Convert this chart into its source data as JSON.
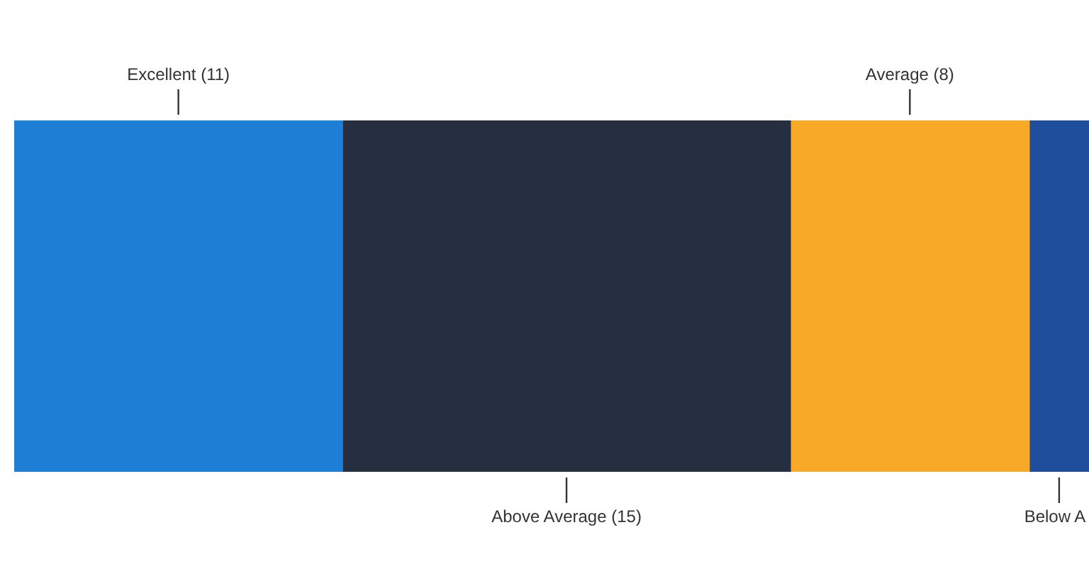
{
  "chart_data": {
    "type": "bar",
    "orientation": "horizontal",
    "stacked": true,
    "categories": [
      null
    ],
    "xlim": [
      0,
      36
    ],
    "tick_labels": false,
    "series": [
      {
        "color": "#1f7fd6",
        "values": [
          11
        ],
        "value_labels": [
          "Excellent (11)"
        ]
      },
      {
        "color": "#252f40",
        "values": [
          15
        ],
        "value_labels": [
          "Above Average (15)"
        ]
      },
      {
        "color": "#f8a928",
        "values": [
          8
        ],
        "value_labels": [
          "Average (8)"
        ]
      },
      {
        "color": "#1f4f9c",
        "values": [
          2
        ],
        "value_labels": [
          "Below A"
        ]
      }
    ]
  }
}
